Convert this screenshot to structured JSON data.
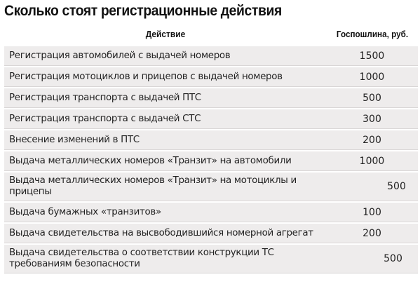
{
  "title": "Сколько стоят регистрационные действия",
  "table": {
    "headers": {
      "action": "Действие",
      "fee": "Госпошлина, руб."
    },
    "rows": [
      {
        "action": "Регистрация автомобилей с выдачей номеров",
        "fee": "1500"
      },
      {
        "action": "Регистрация мотоциклов и прицепов с выдачей номеров",
        "fee": "1000"
      },
      {
        "action": "Регистрация транспорта с выдачей ПТС",
        "fee": "500"
      },
      {
        "action": "Регистрация транспорта с выдачей СТС",
        "fee": "300"
      },
      {
        "action": "Внесение изменений в ПТС",
        "fee": "200"
      },
      {
        "action": "Выдача металлических номеров «Транзит» на автомобили",
        "fee": "1000"
      },
      {
        "action": "Выдача металлических номеров «Транзит» на мотоциклы и прицепы",
        "fee": "500"
      },
      {
        "action": "Выдача бумажных «транзитов»",
        "fee": "100"
      },
      {
        "action": "Выдача свидетельства на высвободившийся номерной агрегат",
        "fee": "200"
      },
      {
        "action": "Выдача свидетельства о соответствии конструкции ТС требованиям безопасности",
        "fee": "500"
      }
    ]
  }
}
